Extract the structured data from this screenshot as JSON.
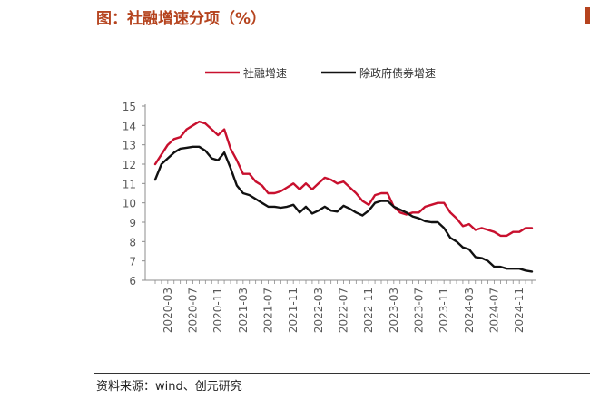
{
  "page": {
    "title": "图：社融增速分项（%）",
    "source": "资料来源：wind、创元研究"
  },
  "chart_data": {
    "type": "line",
    "title": "",
    "xlabel": "",
    "ylabel": "",
    "ylim": [
      6,
      15
    ],
    "yticks": [
      6,
      7,
      8,
      9,
      10,
      11,
      12,
      13,
      14,
      15
    ],
    "x_tick_labels": [
      "2020-03",
      "2020-07",
      "2020-11",
      "2021-03",
      "2021-07",
      "2021-11",
      "2022-03",
      "2022-07",
      "2022-11",
      "2023-03",
      "2023-07",
      "2023-11",
      "2024-03",
      "2024-07",
      "2024-11"
    ],
    "legend_position": "top-center",
    "grid": false,
    "x": [
      "2020-01",
      "2020-02",
      "2020-03",
      "2020-04",
      "2020-05",
      "2020-06",
      "2020-07",
      "2020-08",
      "2020-09",
      "2020-10",
      "2020-11",
      "2020-12",
      "2021-01",
      "2021-02",
      "2021-03",
      "2021-04",
      "2021-05",
      "2021-06",
      "2021-07",
      "2021-08",
      "2021-09",
      "2021-10",
      "2021-11",
      "2021-12",
      "2022-01",
      "2022-02",
      "2022-03",
      "2022-04",
      "2022-05",
      "2022-06",
      "2022-07",
      "2022-08",
      "2022-09",
      "2022-10",
      "2022-11",
      "2022-12",
      "2023-01",
      "2023-02",
      "2023-03",
      "2023-04",
      "2023-05",
      "2023-06",
      "2023-07",
      "2023-08",
      "2023-09",
      "2023-10",
      "2023-11",
      "2023-12",
      "2024-01",
      "2024-02",
      "2024-03",
      "2024-04",
      "2024-05",
      "2024-06",
      "2024-07",
      "2024-08",
      "2024-09",
      "2024-10",
      "2024-11",
      "2024-12",
      "2025-01"
    ],
    "series": [
      {
        "name": "社融增速",
        "color": "#c8102e",
        "values": [
          12.0,
          12.5,
          13.0,
          13.3,
          13.4,
          13.8,
          14.0,
          14.2,
          14.1,
          13.8,
          13.5,
          13.8,
          12.8,
          12.2,
          11.5,
          11.5,
          11.1,
          10.9,
          10.5,
          10.5,
          10.6,
          10.8,
          11.0,
          10.7,
          11.0,
          10.7,
          11.0,
          11.3,
          11.2,
          11.0,
          11.1,
          10.8,
          10.5,
          10.1,
          9.9,
          10.4,
          10.5,
          10.5,
          9.8,
          9.5,
          9.4,
          9.5,
          9.5,
          9.8,
          9.9,
          10.0,
          10.0,
          9.5,
          9.2,
          8.8,
          8.9,
          8.6,
          8.7,
          8.6,
          8.5,
          8.3,
          8.3,
          8.5,
          8.5,
          8.7,
          8.7
        ]
      },
      {
        "name": "除政府债券增速",
        "color": "#111111",
        "values": [
          11.2,
          12.0,
          12.3,
          12.6,
          12.8,
          12.85,
          12.9,
          12.9,
          12.7,
          12.3,
          12.2,
          12.6,
          11.8,
          10.9,
          10.5,
          10.4,
          10.2,
          10.0,
          9.8,
          9.8,
          9.75,
          9.8,
          9.9,
          9.5,
          9.8,
          9.45,
          9.6,
          9.8,
          9.6,
          9.55,
          9.85,
          9.7,
          9.5,
          9.35,
          9.6,
          10.0,
          10.1,
          10.1,
          9.8,
          9.65,
          9.5,
          9.3,
          9.2,
          9.05,
          9.0,
          9.0,
          8.7,
          8.2,
          8.0,
          7.7,
          7.6,
          7.2,
          7.15,
          7.0,
          6.7,
          6.7,
          6.6,
          6.6,
          6.6,
          6.5,
          6.45
        ]
      }
    ]
  }
}
